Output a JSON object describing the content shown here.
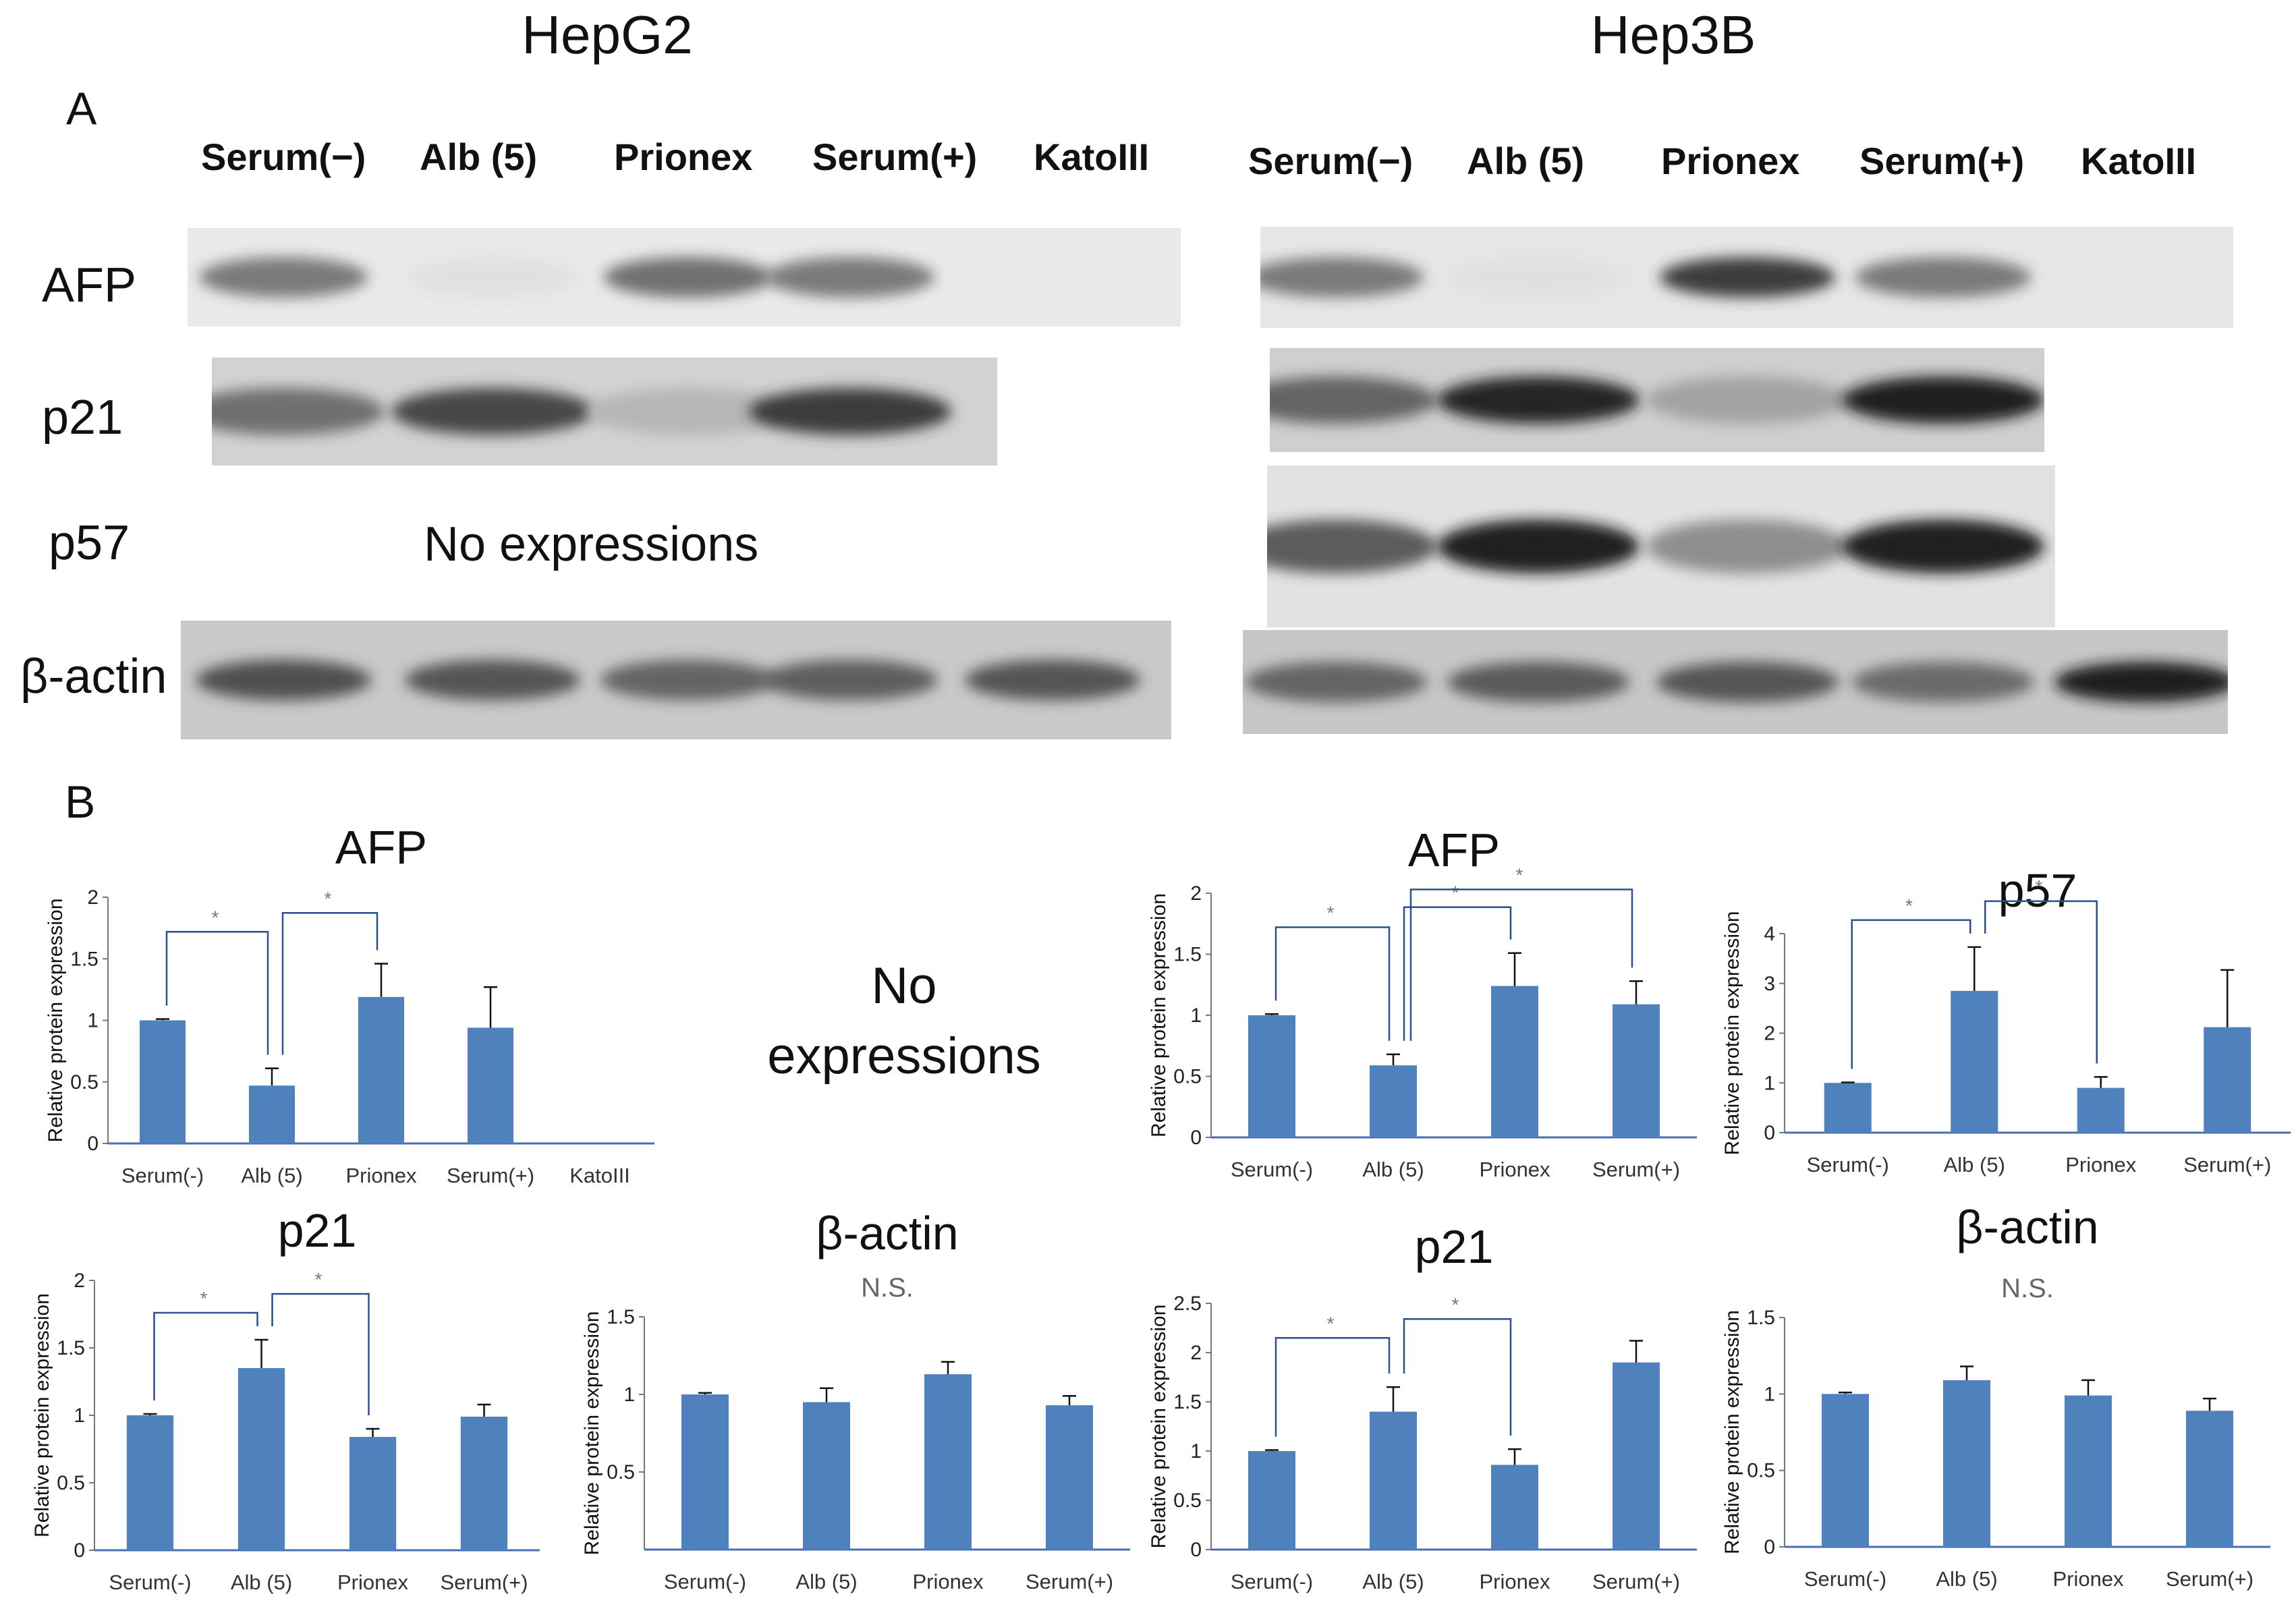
{
  "titles": {
    "left": "HepG2",
    "right": "Hep3B"
  },
  "panels": {
    "a": "A",
    "b": "B"
  },
  "lanes_left": [
    "Serum(−)",
    "Alb (5)",
    "Prionex",
    "Serum(+)",
    "KatoIII"
  ],
  "lanes_right": [
    "Serum(−)",
    "Alb (5)",
    "Prionex",
    "Serum(+)",
    "KatoIII"
  ],
  "rows": {
    "afp": "AFP",
    "p21": "p21",
    "p57": "p57",
    "bactin": "β-actin"
  },
  "no_expressions_blot": "No expressions",
  "no_expressions_chart_line1": "No",
  "no_expressions_chart_line2": "expressions",
  "colors": {
    "bar": "#4f81bd",
    "bracket": "#2e4e8f",
    "axis": "#4a6fb0"
  },
  "blots": {
    "hepg2_afp": [
      0.55,
      0.05,
      0.6,
      0.55,
      0.0
    ],
    "hepg2_p21": [
      0.6,
      0.8,
      0.25,
      0.85
    ],
    "hepg2_bactin": [
      0.75,
      0.72,
      0.65,
      0.68,
      0.72
    ],
    "hep3b_afp": [
      0.55,
      0.05,
      0.85,
      0.55,
      0.0
    ],
    "hep3b_p21": [
      0.65,
      0.95,
      0.35,
      1.0
    ],
    "hep3b_p57": [
      0.7,
      1.0,
      0.45,
      1.0
    ],
    "hep3b_bactin": [
      0.65,
      0.7,
      0.72,
      0.62,
      1.0
    ]
  },
  "chart_data": [
    {
      "id": "hepg2_afp",
      "type": "bar",
      "title": "AFP",
      "ylabel": "Relative protein expression",
      "categories": [
        "Serum(-)",
        "Alb (5)",
        "Prionex",
        "Serum(+)",
        "KatoIII"
      ],
      "values": [
        1.0,
        0.47,
        1.19,
        0.94,
        0
      ],
      "errors": [
        0.01,
        0.14,
        0.27,
        0.33,
        0
      ],
      "ylim": [
        0,
        2
      ],
      "yticks": [
        0,
        0.5,
        1,
        1.5,
        2
      ],
      "significance": [
        {
          "from": 0,
          "to": 1,
          "label": "*"
        },
        {
          "from": 1,
          "to": 2,
          "label": "*"
        }
      ]
    },
    {
      "id": "hepg2_p21",
      "type": "bar",
      "title": "p21",
      "ylabel": "Relative protein expression",
      "categories": [
        "Serum(-)",
        "Alb (5)",
        "Prionex",
        "Serum(+)"
      ],
      "values": [
        1.0,
        1.35,
        0.84,
        0.99
      ],
      "errors": [
        0.01,
        0.21,
        0.06,
        0.09
      ],
      "ylim": [
        0,
        2
      ],
      "yticks": [
        0,
        0.5,
        1,
        1.5,
        2
      ],
      "significance": [
        {
          "from": 0,
          "to": 1,
          "label": "*"
        },
        {
          "from": 1,
          "to": 2,
          "label": "*"
        }
      ]
    },
    {
      "id": "hepg2_bactin",
      "type": "bar",
      "title": "β-actin",
      "ylabel": "Relative protein expression",
      "categories": [
        "Serum(-)",
        "Alb (5)",
        "Prionex",
        "Serum(+)"
      ],
      "values": [
        1.0,
        0.95,
        1.13,
        0.93
      ],
      "errors": [
        0.01,
        0.09,
        0.08,
        0.06
      ],
      "ylim": [
        0,
        1.5
      ],
      "yticks": [
        0.5,
        1,
        1.5
      ],
      "annotation": "N.S.",
      "significance": []
    },
    {
      "id": "hep3b_afp",
      "type": "bar",
      "title": "AFP",
      "ylabel": "Relative protein expression",
      "categories": [
        "Serum(-)",
        "Alb (5)",
        "Prionex",
        "Serum(+)"
      ],
      "values": [
        1.0,
        0.59,
        1.24,
        1.09
      ],
      "errors": [
        0.01,
        0.09,
        0.27,
        0.19
      ],
      "ylim": [
        0,
        2
      ],
      "yticks": [
        0,
        0.5,
        1,
        1.5,
        2
      ],
      "significance": [
        {
          "from": 0,
          "to": 1,
          "label": "*"
        },
        {
          "from": 1,
          "to": 2,
          "label": "*"
        },
        {
          "from": 1,
          "to": 3,
          "label": "*"
        }
      ]
    },
    {
      "id": "hep3b_p57",
      "type": "bar",
      "title": "p57",
      "ylabel": "Relative protein expression",
      "categories": [
        "Serum(-)",
        "Alb (5)",
        "Prionex",
        "Serum(+)"
      ],
      "values": [
        1.0,
        2.85,
        0.9,
        2.12
      ],
      "errors": [
        0.01,
        0.88,
        0.22,
        1.15
      ],
      "ylim": [
        0,
        4
      ],
      "yticks": [
        0,
        1,
        2,
        3,
        4
      ],
      "significance": [
        {
          "from": 0,
          "to": 1,
          "label": "*"
        },
        {
          "from": 1,
          "to": 2,
          "label": "*"
        }
      ]
    },
    {
      "id": "hep3b_p21",
      "type": "bar",
      "title": "p21",
      "ylabel": "Relative protein expression",
      "categories": [
        "Serum(-)",
        "Alb (5)",
        "Prionex",
        "Serum(+)"
      ],
      "values": [
        1.0,
        1.4,
        0.86,
        1.9
      ],
      "errors": [
        0.01,
        0.25,
        0.16,
        0.22
      ],
      "ylim": [
        0,
        2.5
      ],
      "yticks": [
        0,
        0.5,
        1,
        1.5,
        2,
        2.5
      ],
      "significance": [
        {
          "from": 0,
          "to": 1,
          "label": "*"
        },
        {
          "from": 1,
          "to": 2,
          "label": "*"
        }
      ]
    },
    {
      "id": "hep3b_bactin",
      "type": "bar",
      "title": "β-actin",
      "ylabel": "Relative protein expression",
      "categories": [
        "Serum(-)",
        "Alb (5)",
        "Prionex",
        "Serum(+)"
      ],
      "values": [
        1.0,
        1.09,
        0.99,
        0.89
      ],
      "errors": [
        0.01,
        0.09,
        0.1,
        0.08
      ],
      "ylim": [
        0,
        1.5
      ],
      "yticks": [
        0,
        0.5,
        1,
        1.5
      ],
      "annotation": "N.S.",
      "significance": []
    }
  ]
}
